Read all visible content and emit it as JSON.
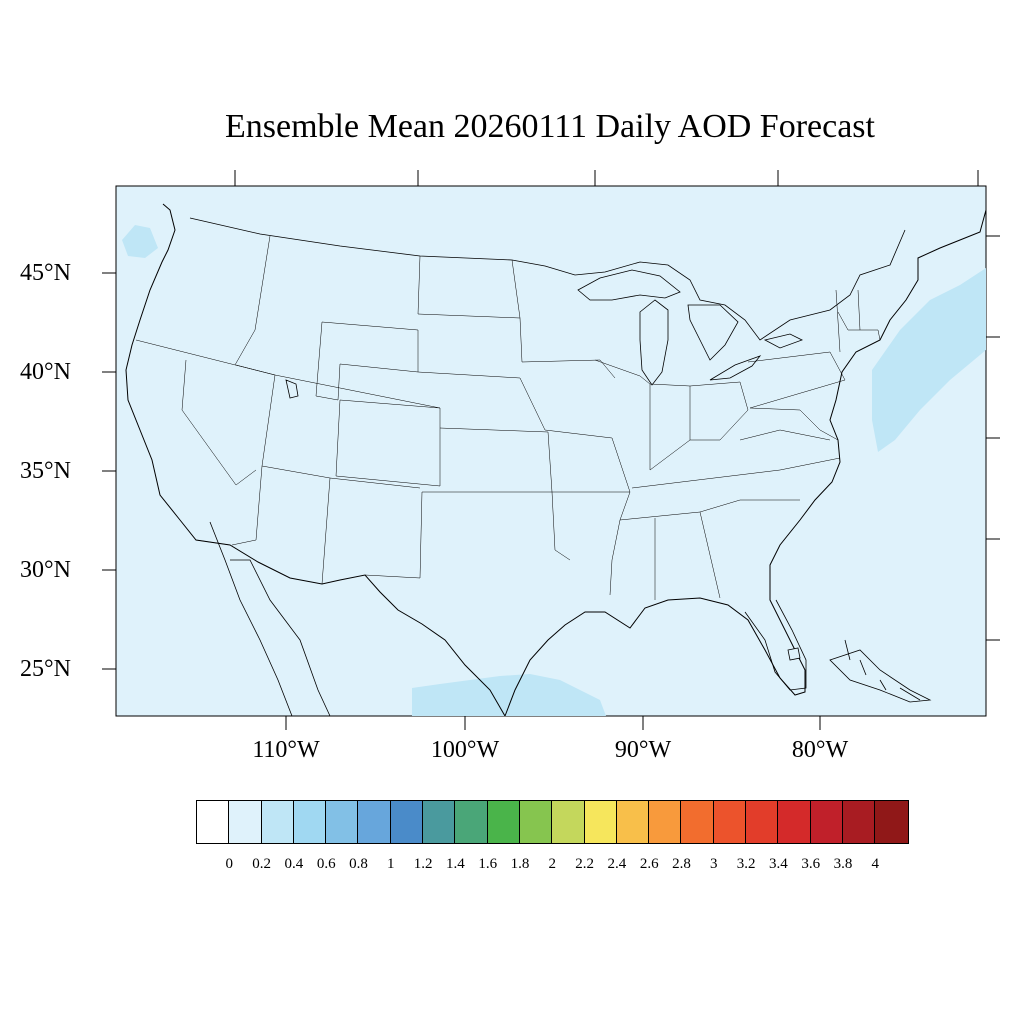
{
  "title": "Ensemble Mean 20260111 Daily AOD Forecast",
  "map": {
    "region": "Contiguous United States",
    "background_color": "#dff2fb",
    "plume_color": "#bfe6f6",
    "lat_labels": [
      "45°N",
      "40°N",
      "35°N",
      "30°N",
      "25°N"
    ],
    "lon_labels": [
      "110°W",
      "100°W",
      "90°W",
      "80°W"
    ]
  },
  "colorbar": {
    "labels": [
      "0",
      "0.2",
      "0.4",
      "0.6",
      "0.8",
      "1",
      "1.2",
      "1.4",
      "1.6",
      "1.8",
      "2",
      "2.2",
      "2.4",
      "2.6",
      "2.8",
      "3",
      "3.2",
      "3.4",
      "3.6",
      "3.8",
      "4"
    ],
    "colors": [
      "#ffffff",
      "#dff2fb",
      "#bfe6f6",
      "#a0d8f2",
      "#82c0e6",
      "#67a6dc",
      "#4a8bc9",
      "#4a9a9e",
      "#4aa678",
      "#4ab44a",
      "#86c54f",
      "#c4d75c",
      "#f6e65c",
      "#f8bf4a",
      "#f89a3c",
      "#f26d2e",
      "#ec532c",
      "#e23d2a",
      "#d42a2a",
      "#c0202a",
      "#a81c22",
      "#901818"
    ]
  }
}
